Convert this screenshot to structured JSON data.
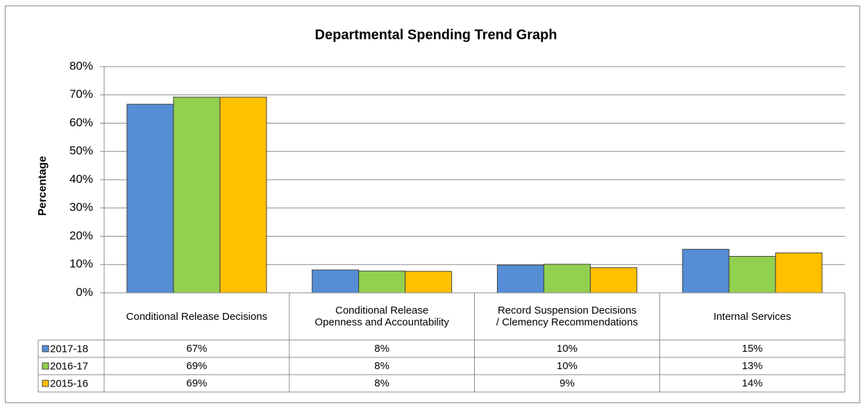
{
  "chart_data": {
    "type": "bar",
    "title": "Departmental Spending Trend Graph",
    "y_label": "Percentage",
    "categories": [
      "Conditional Release Decisions",
      "Conditional Release Openness and Accountability",
      "Record Suspension Decisions / Clemency Recommendations",
      "Internal Services"
    ],
    "series": [
      {
        "name": "2017-18",
        "color": "#558ed5",
        "values": [
          66.7,
          8.1,
          9.8,
          15.4
        ],
        "value_labels": [
          "67%",
          "8%",
          "10%",
          "15%"
        ]
      },
      {
        "name": "2016-17",
        "color": "#92d050",
        "values": [
          69.2,
          7.7,
          10.1,
          12.9
        ],
        "value_labels": [
          "69%",
          "8%",
          "10%",
          "13%"
        ]
      },
      {
        "name": "2015-16",
        "color": "#ffc000",
        "values": [
          69.2,
          7.6,
          8.9,
          14.1
        ],
        "value_labels": [
          "69%",
          "8%",
          "9%",
          "14%"
        ]
      }
    ],
    "ylim": [
      0,
      80
    ],
    "yticks": [
      {
        "value": 0,
        "label": "0%"
      },
      {
        "value": 10,
        "label": "10%"
      },
      {
        "value": 20,
        "label": "20%"
      },
      {
        "value": 30,
        "label": "30%"
      },
      {
        "value": 40,
        "label": "40%"
      },
      {
        "value": 50,
        "label": "50%"
      },
      {
        "value": 60,
        "label": "60%"
      },
      {
        "value": 70,
        "label": "70%"
      },
      {
        "value": 80,
        "label": "80%"
      }
    ],
    "grid": true
  }
}
